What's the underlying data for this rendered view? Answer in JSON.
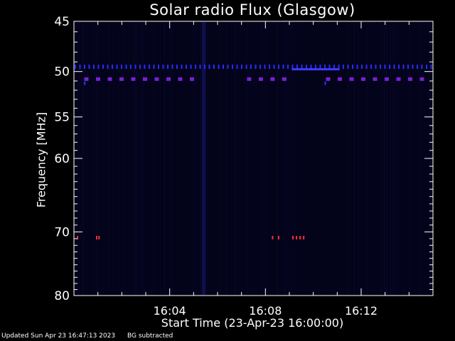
{
  "chart_data": {
    "type": "heatmap",
    "title": "Solar radio Flux (Glasgow)",
    "xlabel": "Start Time (23-Apr-23 16:00:00)",
    "ylabel": "Frequency [MHz]",
    "x_tick_labels": [
      "16:04",
      "16:08",
      "16:12"
    ],
    "x_tick_minutes": [
      4,
      8,
      12
    ],
    "xlim_minutes": [
      0,
      15
    ],
    "y_tick_values": [
      45,
      50,
      55,
      60,
      70,
      80
    ],
    "y_tick_labels": [
      "45",
      "50",
      "55",
      "60",
      "70",
      "80"
    ],
    "ylim": [
      45,
      80
    ],
    "y_scale": "log",
    "y_inverted": true,
    "grid": false,
    "background_color": "#03031a",
    "bands": [
      {
        "freq": 49.5,
        "minute_start": 0,
        "minute_end": 15,
        "style": "dotted",
        "color": "#2a2aff"
      },
      {
        "freq": 49.8,
        "minute_start": 9.1,
        "minute_end": 11.1,
        "style": "solid",
        "color": "#3b3bff"
      },
      {
        "freq": 50.8,
        "minute_start": 0.4,
        "minute_end": 5.4,
        "style": "dashed",
        "color": "#7a1fd6"
      },
      {
        "freq": 50.8,
        "minute_start": 7.2,
        "minute_end": 9.2,
        "style": "dashed",
        "color": "#7a1fd6"
      },
      {
        "freq": 50.8,
        "minute_start": 10.5,
        "minute_end": 15,
        "style": "dashed",
        "color": "#7a1fd6"
      }
    ],
    "spots": [
      {
        "minute": 0.15,
        "freq": 70.8,
        "color": "#ff3030"
      },
      {
        "minute": 0.95,
        "freq": 70.8,
        "color": "#ff3030"
      },
      {
        "minute": 1.05,
        "freq": 70.8,
        "color": "#ff3030"
      },
      {
        "minute": 8.3,
        "freq": 70.8,
        "color": "#ff3030"
      },
      {
        "minute": 8.55,
        "freq": 70.8,
        "color": "#ff3030"
      },
      {
        "minute": 9.15,
        "freq": 70.8,
        "color": "#ff3030"
      },
      {
        "minute": 9.3,
        "freq": 70.8,
        "color": "#ff3030"
      },
      {
        "minute": 9.45,
        "freq": 70.8,
        "color": "#ff3030"
      },
      {
        "minute": 9.6,
        "freq": 70.8,
        "color": "#ff3030"
      },
      {
        "minute": 0.45,
        "freq": 51.2,
        "color": "#3030ff"
      },
      {
        "minute": 10.5,
        "freq": 51.2,
        "color": "#3030ff"
      }
    ]
  },
  "footer": {
    "updated": "Updated Sun Apr 23 16:47:13 2023",
    "note": "BG subtracted"
  }
}
